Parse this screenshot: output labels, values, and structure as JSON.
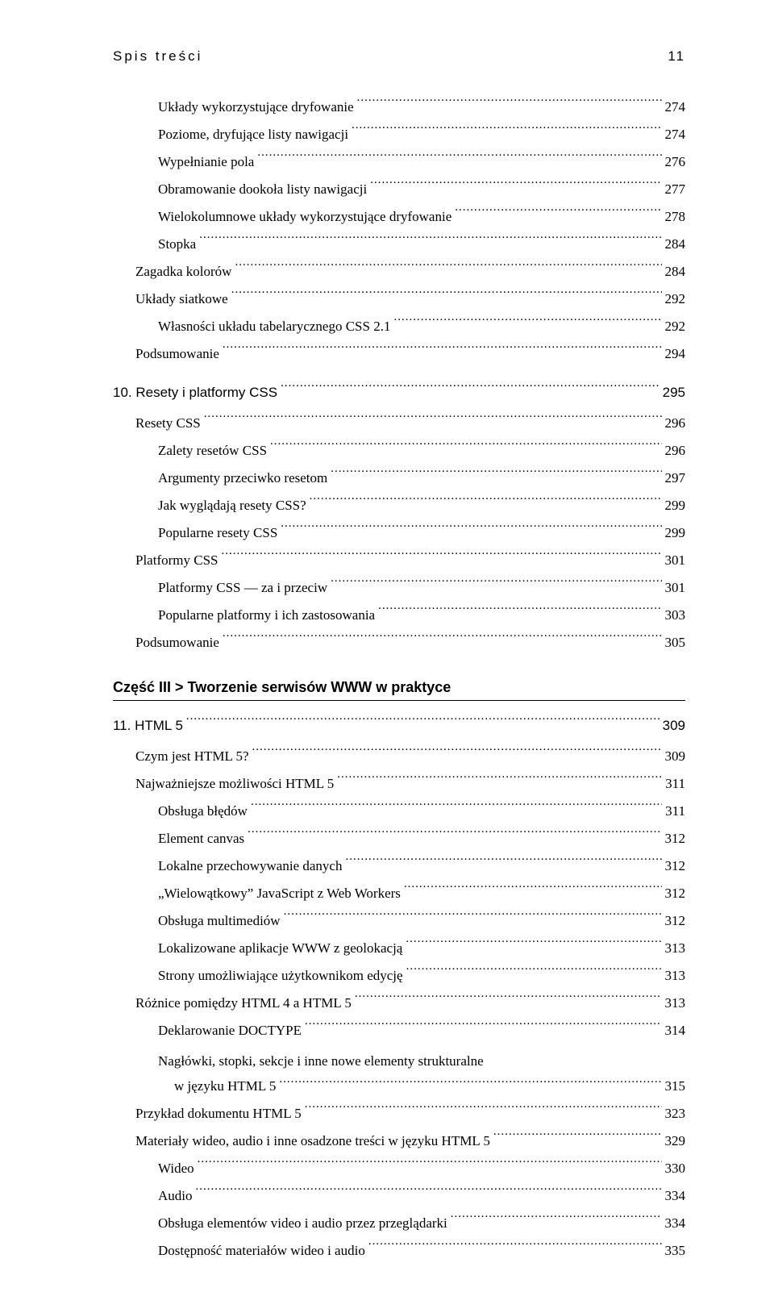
{
  "header": {
    "title": "Spis treści",
    "page": "11"
  },
  "toc": [
    {
      "indent": 2,
      "label": "Układy wykorzystujące dryfowanie",
      "page": "274"
    },
    {
      "indent": 2,
      "label": "Poziome, dryfujące listy nawigacji",
      "page": "274"
    },
    {
      "indent": 2,
      "label": "Wypełnianie pola",
      "page": "276"
    },
    {
      "indent": 2,
      "label": "Obramowanie dookoła listy nawigacji",
      "page": "277"
    },
    {
      "indent": 2,
      "label": "Wielokolumnowe układy wykorzystujące dryfowanie",
      "page": "278"
    },
    {
      "indent": 2,
      "label": "Stopka",
      "page": "284"
    },
    {
      "indent": 1,
      "label": "Zagadka kolorów",
      "page": "284"
    },
    {
      "indent": 1,
      "label": "Układy siatkowe",
      "page": "292"
    },
    {
      "indent": 2,
      "label": "Własności układu tabelarycznego CSS 2.1",
      "page": "292"
    },
    {
      "indent": 1,
      "label": "Podsumowanie",
      "page": "294"
    },
    {
      "chapter": true,
      "indent": 0,
      "label": "10. Resety i platformy CSS",
      "page": "295"
    },
    {
      "indent": 1,
      "label": "Resety CSS",
      "page": "296"
    },
    {
      "indent": 2,
      "label": "Zalety resetów CSS",
      "page": "296"
    },
    {
      "indent": 2,
      "label": "Argumenty przeciwko resetom",
      "page": "297"
    },
    {
      "indent": 2,
      "label": "Jak wyglądają resety CSS?",
      "page": "299"
    },
    {
      "indent": 2,
      "label": "Popularne resety CSS",
      "page": "299"
    },
    {
      "indent": 1,
      "label": "Platformy CSS",
      "page": "301"
    },
    {
      "indent": 2,
      "label": "Platformy CSS — za i przeciw",
      "page": "301"
    },
    {
      "indent": 2,
      "label": "Popularne platformy i ich zastosowania",
      "page": "303"
    },
    {
      "indent": 1,
      "label": "Podsumowanie",
      "page": "305"
    },
    {
      "part": true,
      "label": "Część III > Tworzenie serwisów WWW w praktyce"
    },
    {
      "chapter": true,
      "indent": 0,
      "label": "11. HTML 5",
      "page": "309"
    },
    {
      "indent": 1,
      "label": "Czym jest HTML 5?",
      "page": "309"
    },
    {
      "indent": 1,
      "label": "Najważniejsze możliwości HTML 5",
      "page": "311"
    },
    {
      "indent": 2,
      "label": "Obsługa błędów",
      "page": "311"
    },
    {
      "indent": 2,
      "label": "Element canvas",
      "page": "312"
    },
    {
      "indent": 2,
      "label": "Lokalne przechowywanie danych",
      "page": "312"
    },
    {
      "indent": 2,
      "label": "„Wielowątkowy” JavaScript z Web Workers",
      "page": "312"
    },
    {
      "indent": 2,
      "label": "Obsługa multimediów",
      "page": "312"
    },
    {
      "indent": 2,
      "label": "Lokalizowane aplikacje WWW z geolokacją",
      "page": "313"
    },
    {
      "indent": 2,
      "label": "Strony umożliwiające użytkownikom edycję",
      "page": "313"
    },
    {
      "indent": 1,
      "label": "Różnice pomiędzy HTML 4 a HTML 5",
      "page": "313"
    },
    {
      "indent": 2,
      "label": "Deklarowanie DOCTYPE",
      "page": "314"
    },
    {
      "wrap": true,
      "indent": 2,
      "line1": "Nagłówki, stopki, sekcje i inne nowe elementy strukturalne",
      "line2": "w języku HTML 5",
      "page": "315"
    },
    {
      "indent": 1,
      "label": "Przykład dokumentu HTML 5",
      "page": "323"
    },
    {
      "indent": 1,
      "label": "Materiały wideo, audio i inne osadzone treści w języku HTML 5",
      "page": "329"
    },
    {
      "indent": 2,
      "label": "Wideo",
      "page": "330"
    },
    {
      "indent": 2,
      "label": "Audio",
      "page": "334"
    },
    {
      "indent": 2,
      "label": "Obsługa elementów video i audio przez przeglądarki",
      "page": "334"
    },
    {
      "indent": 2,
      "label": "Dostępność materiałów wideo i audio",
      "page": "335"
    }
  ]
}
